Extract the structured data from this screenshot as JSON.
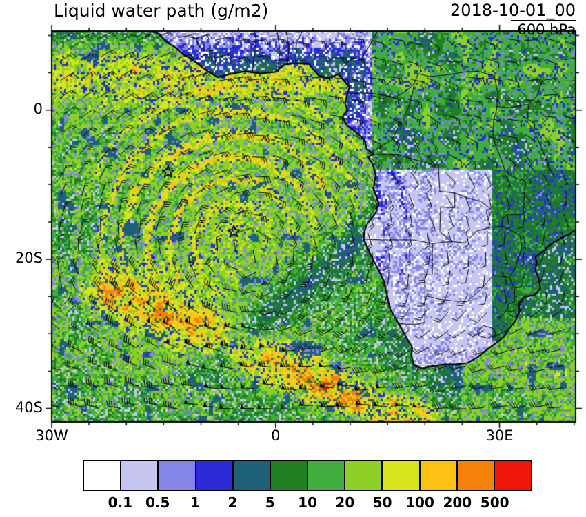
{
  "header": {
    "title": "Liquid water path (g/m2)",
    "datetime": "2018-10-01_00",
    "level": "600 hPa"
  },
  "axes": {
    "y_labels": [
      {
        "text": "0",
        "lat": 0
      },
      {
        "text": "20S",
        "lat": -20
      },
      {
        "text": "40S",
        "lat": -40
      }
    ],
    "x_labels": [
      {
        "text": "30W",
        "lon": -30
      },
      {
        "text": "0",
        "lon": 0
      },
      {
        "text": "30E",
        "lon": 30
      }
    ]
  },
  "colorbar": {
    "levels": [
      "0.1",
      "0.5",
      "1",
      "2",
      "5",
      "10",
      "20",
      "50",
      "100",
      "200",
      "500"
    ],
    "colors": [
      "#ffffff",
      "#c6c6f0",
      "#8585e8",
      "#2a2ad6",
      "#1e6076",
      "#208020",
      "#3fae3f",
      "#8ed028",
      "#d9e51e",
      "#fdc113",
      "#f5820a",
      "#ee1509"
    ]
  },
  "chart_data": {
    "type": "heatmap",
    "title": "Liquid water path (g/m2)",
    "units": "g/m2",
    "time": "2018-10-01_00",
    "pressure_level": "600 hPa",
    "extent": {
      "lon_min": -30,
      "lon_max": 40.2,
      "lat_min": -41.8,
      "lat_max": 10.6
    },
    "levels": [
      0.1,
      0.5,
      1,
      2,
      5,
      10,
      20,
      50,
      100,
      200,
      500
    ],
    "colors": [
      "#ffffff",
      "#c6c6f0",
      "#8585e8",
      "#2a2ad6",
      "#1e6076",
      "#208020",
      "#3fae3f",
      "#8ed028",
      "#d9e51e",
      "#fdc113",
      "#f5820a",
      "#ee1509"
    ],
    "overlays": {
      "wind_barbs": "600 hPa wind barbs (half=5kt, full=10kt, pennant=50kt)",
      "coastlines": true,
      "country_borders": true
    },
    "markers": [
      {
        "type": "star",
        "lon": -14.4,
        "lat": -8.3
      },
      {
        "type": "star",
        "lon": -5.6,
        "lat": -16.3
      }
    ],
    "pattern_notes": [
      "Large anticyclonic spiral of cloud bands (20-200 g/m2, yellow-orange arcs) over the SE Atlantic centered near 5W 17S",
      "Very high LWP frontal cloud band (200 to >500 g/m2, red streaks) stretching from about 22W 24S southeastward to 20E 43S",
      "Orange ITCZ cloudiness along 2N-8N near and west of the Gulf of Guinea coast",
      "Mostly clear (<0.1 g/m2, white) over subtropical southern Africa; scattered cloud over the Congo basin and the east coast",
      "Clear dry slot separating the spiral from the front roughly from 12E 17S to 10W 35S"
    ],
    "map": {
      "coastline": [
        [
          -16.6,
          10.6
        ],
        [
          -15.6,
          10.2
        ],
        [
          -14.7,
          9.2
        ],
        [
          -13.3,
          8.3
        ],
        [
          -12.6,
          7.6
        ],
        [
          -11.5,
          7.0
        ],
        [
          -10.7,
          6.4
        ],
        [
          -9.1,
          5.2
        ],
        [
          -7.7,
          4.4
        ],
        [
          -6.2,
          4.8
        ],
        [
          -4.1,
          5.2
        ],
        [
          -2.1,
          4.9
        ],
        [
          -0.1,
          5.1
        ],
        [
          1.2,
          6.1
        ],
        [
          2.6,
          6.3
        ],
        [
          4.4,
          6.2
        ],
        [
          5.8,
          4.6
        ],
        [
          7.1,
          4.3
        ],
        [
          8.4,
          4.8
        ],
        [
          9.1,
          4.0
        ],
        [
          9.9,
          3.1
        ],
        [
          9.6,
          2.1
        ],
        [
          9.3,
          1.0
        ],
        [
          9.6,
          0.0
        ],
        [
          9.0,
          -0.9
        ],
        [
          9.4,
          -1.9
        ],
        [
          10.7,
          -2.9
        ],
        [
          11.9,
          -4.0
        ],
        [
          12.2,
          -5.2
        ],
        [
          13.2,
          -5.9
        ],
        [
          12.4,
          -6.3
        ],
        [
          13.0,
          -7.2
        ],
        [
          13.4,
          -8.8
        ],
        [
          13.1,
          -10.6
        ],
        [
          13.8,
          -12.4
        ],
        [
          13.4,
          -13.8
        ],
        [
          12.3,
          -15.2
        ],
        [
          11.9,
          -16.2
        ],
        [
          11.8,
          -17.3
        ],
        [
          12.6,
          -19.1
        ],
        [
          13.6,
          -21.1
        ],
        [
          14.5,
          -22.9
        ],
        [
          14.9,
          -24.7
        ],
        [
          15.3,
          -26.6
        ],
        [
          16.5,
          -28.6
        ],
        [
          17.4,
          -30.3
        ],
        [
          18.3,
          -31.8
        ],
        [
          18.2,
          -32.9
        ],
        [
          18.5,
          -34.1
        ],
        [
          19.7,
          -34.7
        ],
        [
          20.6,
          -34.4
        ],
        [
          22.5,
          -34.1
        ],
        [
          24.1,
          -34.1
        ],
        [
          25.7,
          -33.9
        ],
        [
          27.1,
          -33.1
        ],
        [
          28.1,
          -32.3
        ],
        [
          29.3,
          -31.4
        ],
        [
          30.6,
          -30.4
        ],
        [
          31.2,
          -29.4
        ],
        [
          32.1,
          -28.3
        ],
        [
          32.7,
          -27.0
        ],
        [
          32.6,
          -25.9
        ],
        [
          33.3,
          -25.1
        ],
        [
          34.7,
          -24.8
        ],
        [
          35.5,
          -23.9
        ],
        [
          35.2,
          -22.4
        ],
        [
          34.8,
          -21.5
        ],
        [
          35.0,
          -20.4
        ],
        [
          34.8,
          -19.7
        ],
        [
          36.0,
          -18.8
        ],
        [
          37.0,
          -17.9
        ],
        [
          38.2,
          -17.2
        ],
        [
          39.3,
          -16.7
        ],
        [
          40.2,
          -16.0
        ]
      ],
      "borders": [
        [
          [
            -3.1,
            5.1
          ],
          [
            -2.9,
            7.2
          ],
          [
            -2.6,
            9.4
          ],
          [
            -2.9,
            10.6
          ]
        ],
        [
          [
            0.3,
            5.9
          ],
          [
            0.6,
            7.8
          ],
          [
            0.2,
            10.6
          ]
        ],
        [
          [
            1.6,
            6.2
          ],
          [
            1.8,
            8.3
          ],
          [
            1.4,
            10.6
          ]
        ],
        [
          [
            2.7,
            6.4
          ],
          [
            2.8,
            9.1
          ],
          [
            3.6,
            10.6
          ]
        ],
        [
          [
            8.5,
            4.8
          ],
          [
            9.4,
            6.2
          ],
          [
            10.5,
            7.0
          ],
          [
            11.3,
            6.7
          ],
          [
            12.1,
            7.8
          ],
          [
            12.9,
            9.2
          ],
          [
            13.7,
            10.6
          ]
        ],
        [
          [
            9.8,
            2.2
          ],
          [
            11.4,
            2.3
          ],
          [
            13.2,
            2.2
          ],
          [
            16.1,
            1.7
          ],
          [
            17.9,
            2.9
          ],
          [
            18.6,
            3.6
          ],
          [
            19.1,
            4.9
          ],
          [
            20.6,
            4.5
          ],
          [
            22.8,
            4.7
          ],
          [
            25.3,
            5.1
          ],
          [
            27.1,
            5.2
          ],
          [
            29.3,
            4.6
          ]
        ],
        [
          [
            12.4,
            -5.9
          ],
          [
            14.1,
            -4.9
          ],
          [
            15.6,
            -4.0
          ],
          [
            16.3,
            -2.6
          ],
          [
            17.2,
            -1.0
          ],
          [
            17.8,
            0.4
          ],
          [
            18.3,
            2.1
          ],
          [
            18.6,
            3.6
          ]
        ],
        [
          [
            13.0,
            -5.9
          ],
          [
            16.4,
            -6.0
          ],
          [
            19.9,
            -7.0
          ],
          [
            21.8,
            -7.4
          ],
          [
            22.0,
            -10.9
          ],
          [
            24.0,
            -11.1
          ]
        ],
        [
          [
            24.0,
            -11.1
          ],
          [
            24.0,
            -13.1
          ],
          [
            22.1,
            -13.0
          ],
          [
            22.0,
            -16.3
          ],
          [
            23.5,
            -17.6
          ]
        ],
        [
          [
            11.8,
            -17.3
          ],
          [
            14.2,
            -17.4
          ],
          [
            18.5,
            -17.4
          ],
          [
            21.0,
            -17.9
          ],
          [
            23.5,
            -17.6
          ],
          [
            25.3,
            -17.8
          ]
        ],
        [
          [
            21.0,
            -17.9
          ],
          [
            21.0,
            -22.0
          ],
          [
            20.0,
            -22.0
          ],
          [
            20.0,
            -28.4
          ],
          [
            19.1,
            -28.7
          ],
          [
            17.5,
            -28.7
          ],
          [
            16.5,
            -28.6
          ]
        ],
        [
          [
            20.0,
            -24.9
          ],
          [
            22.1,
            -25.4
          ],
          [
            24.0,
            -25.6
          ],
          [
            25.6,
            -25.7
          ],
          [
            26.9,
            -24.6
          ],
          [
            28.0,
            -23.5
          ],
          [
            29.1,
            -22.2
          ],
          [
            31.3,
            -22.4
          ]
        ],
        [
          [
            31.3,
            -22.4
          ],
          [
            32.0,
            -24.0
          ],
          [
            32.0,
            -25.7
          ],
          [
            31.2,
            -26.0
          ],
          [
            31.0,
            -27.0
          ],
          [
            32.1,
            -26.9
          ]
        ],
        [
          [
            25.3,
            -17.8
          ],
          [
            27.0,
            -16.2
          ],
          [
            28.9,
            -15.7
          ],
          [
            30.4,
            -15.6
          ],
          [
            30.4,
            -14.5
          ],
          [
            31.1,
            -14.0
          ],
          [
            33.2,
            -14.0
          ]
        ],
        [
          [
            30.4,
            -15.6
          ],
          [
            31.4,
            -16.1
          ],
          [
            32.7,
            -16.7
          ],
          [
            33.0,
            -18.4
          ],
          [
            32.5,
            -20.0
          ],
          [
            32.0,
            -21.3
          ],
          [
            31.3,
            -22.4
          ]
        ],
        [
          [
            24.0,
            -11.1
          ],
          [
            25.8,
            -11.8
          ],
          [
            27.6,
            -12.3
          ],
          [
            29.0,
            -13.4
          ],
          [
            28.4,
            -14.8
          ]
        ],
        [
          [
            29.3,
            4.6
          ],
          [
            29.8,
            2.0
          ],
          [
            29.6,
            0.0
          ],
          [
            29.2,
            -1.5
          ],
          [
            29.1,
            -3.0
          ],
          [
            29.4,
            -4.5
          ],
          [
            30.3,
            -6.8
          ],
          [
            30.8,
            -8.3
          ]
        ],
        [
          [
            30.8,
            -8.3
          ],
          [
            32.2,
            -9.1
          ],
          [
            33.5,
            -9.5
          ],
          [
            33.3,
            -11.5
          ],
          [
            33.2,
            -14.0
          ]
        ],
        [
          [
            27.0,
            -29.6
          ],
          [
            27.9,
            -28.9
          ],
          [
            29.2,
            -29.3
          ],
          [
            29.5,
            -30.1
          ],
          [
            28.4,
            -30.6
          ],
          [
            27.3,
            -30.3
          ],
          [
            27.0,
            -29.6
          ]
        ],
        [
          [
            -12.0,
            9.9
          ],
          [
            -10.6,
            9.6
          ],
          [
            -10.3,
            8.6
          ],
          [
            -9.2,
            7.9
          ],
          [
            -8.2,
            8.0
          ]
        ],
        [
          [
            -8.5,
            4.9
          ],
          [
            -8.0,
            6.0
          ],
          [
            -8.2,
            7.5
          ]
        ],
        [
          [
            29.6,
            0.5
          ],
          [
            31.3,
            0.3
          ],
          [
            33.9,
            0.8
          ],
          [
            35.0,
            1.9
          ],
          [
            35.9,
            4.4
          ]
        ],
        [
          [
            33.9,
            0.8
          ],
          [
            33.7,
            -1.5
          ],
          [
            34.7,
            -3.0
          ],
          [
            35.6,
            -5.0
          ],
          [
            36.5,
            -7.5
          ],
          [
            37.4,
            -9.0
          ]
        ]
      ]
    }
  }
}
